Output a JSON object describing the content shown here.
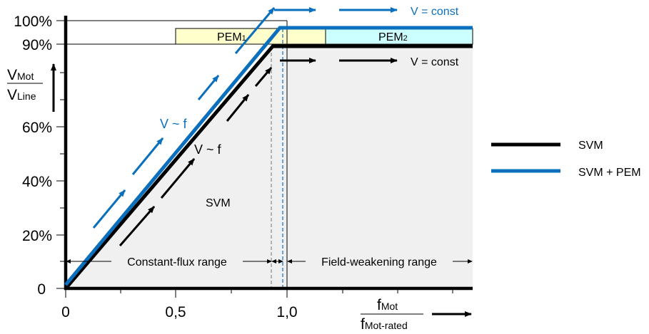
{
  "y_axis": {
    "label_num": "V",
    "label_num_sub": "Mot",
    "label_den": "V",
    "label_den_sub": "Line",
    "ticks": [
      "100%",
      "90%",
      "60%",
      "40%",
      "20%",
      "0"
    ]
  },
  "x_axis": {
    "label_num": "f",
    "label_num_sub": "Mot",
    "label_den": "f",
    "label_den_sub": "Mot-rated",
    "ticks": [
      "0",
      "0,5",
      "1,0"
    ]
  },
  "regions": {
    "pem1_label": "PEM",
    "pem1_sub": "1",
    "pem2_label": "PEM",
    "pem2_sub": "2",
    "svm_label": "SVM",
    "constant_flux": "Constant-flux range",
    "field_weakening": "Field-weakening range"
  },
  "annotations": {
    "v_const_blue": "V = const",
    "v_const_black": "V = const",
    "v_f_blue": "V ~ f",
    "v_f_black": "V ~ f"
  },
  "legend": [
    {
      "label": "SVM",
      "color": "#000000"
    },
    {
      "label": "SVM + PEM",
      "color": "#0a6fbd"
    }
  ],
  "colors": {
    "svm_line": "#000000",
    "pem_line": "#0a6fbd",
    "svm_area": "#f0f0f0",
    "pem1_fill": "#ffffcc",
    "pem2_fill": "#ccffff"
  }
}
